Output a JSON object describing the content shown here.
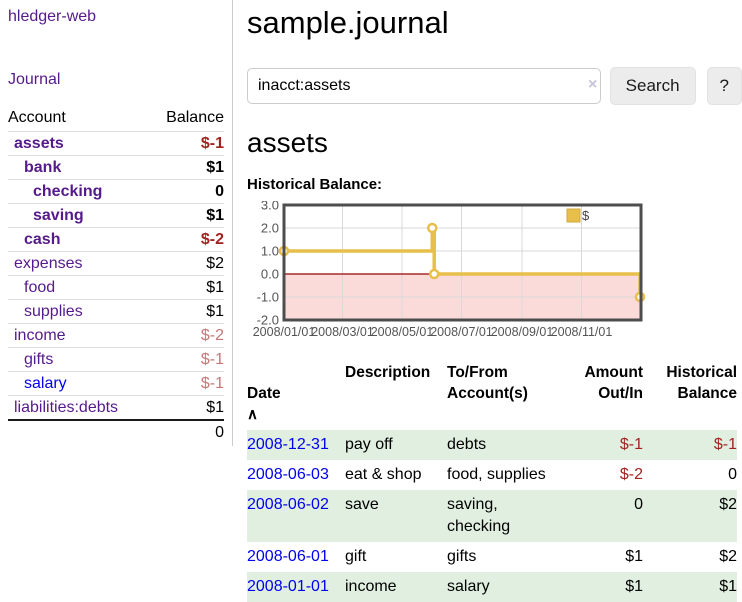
{
  "app": {
    "brand": "hledger-web",
    "nav_journal": "Journal"
  },
  "sidebar": {
    "columns": {
      "account": "Account",
      "balance": "Balance"
    },
    "accounts": [
      {
        "name": "assets",
        "balance": "$-1"
      },
      {
        "name": "bank",
        "balance": "$1"
      },
      {
        "name": "checking",
        "balance": "0"
      },
      {
        "name": "saving",
        "balance": "$1"
      },
      {
        "name": "cash",
        "balance": "$-2"
      },
      {
        "name": "expenses",
        "balance": "$2"
      },
      {
        "name": "food",
        "balance": "$1"
      },
      {
        "name": "supplies",
        "balance": "$1"
      },
      {
        "name": "income",
        "balance": "$-2"
      },
      {
        "name": "gifts",
        "balance": "$-1"
      },
      {
        "name": "salary",
        "balance": "$-1"
      },
      {
        "name": "liabilities:debts",
        "balance": "$1"
      }
    ],
    "total": "0"
  },
  "header": {
    "title": "sample.journal"
  },
  "search": {
    "value": "inacct:assets",
    "clear_icon": "×",
    "button_label": "Search",
    "help_label": "?"
  },
  "register": {
    "heading": "assets",
    "chart_label": "Historical Balance:",
    "table": {
      "headers": {
        "date": "Date",
        "sort_icon": "∧",
        "description": "Description",
        "accounts": "To/From\nAccount(s)",
        "amount": "Amount\nOut/In",
        "balance": "Historical\nBalance"
      },
      "rows": [
        {
          "date": "2008-12-31",
          "description": "pay off",
          "accounts": "debts",
          "amount": "$-1",
          "balance": "$-1"
        },
        {
          "date": "2008-06-03",
          "description": "eat & shop",
          "accounts": "food, supplies",
          "amount": "$-2",
          "balance": "0"
        },
        {
          "date": "2008-06-02",
          "description": "save",
          "accounts": "saving,\nchecking",
          "amount": "0",
          "balance": "$2"
        },
        {
          "date": "2008-06-01",
          "description": "gift",
          "accounts": "gifts",
          "amount": "$1",
          "balance": "$2"
        },
        {
          "date": "2008-01-01",
          "description": "income",
          "accounts": "salary",
          "amount": "$1",
          "balance": "$1"
        }
      ]
    }
  },
  "chart_data": {
    "type": "line",
    "step": true,
    "title": "Historical Balance",
    "series": [
      {
        "name": "$",
        "points": [
          [
            "2008-01-01",
            1
          ],
          [
            "2008-06-01",
            2
          ],
          [
            "2008-06-03",
            0
          ],
          [
            "2008-12-31",
            -1
          ]
        ]
      }
    ],
    "x_ticks": [
      "2008/01/01",
      "2008/03/01",
      "2008/05/01",
      "2008/07/01",
      "2008/09/01",
      "2008/11/01"
    ],
    "y_ticks": [
      3.0,
      2.0,
      1.0,
      0.0,
      -1.0,
      -2.0
    ],
    "ylim": [
      -2,
      3
    ],
    "x_range": [
      "2008-01-01",
      "2009-01-01"
    ],
    "grid": true,
    "legend": {
      "label": "$",
      "position": "top-right"
    },
    "colors": {
      "line": "#e7bf4a",
      "marker_fill": "#ffffff",
      "negative_region": "#fbdada",
      "zero_line": "#9b0000",
      "grid": "#d9d9d9",
      "border": "#4d4d4d",
      "tick_text": "#545454"
    }
  }
}
